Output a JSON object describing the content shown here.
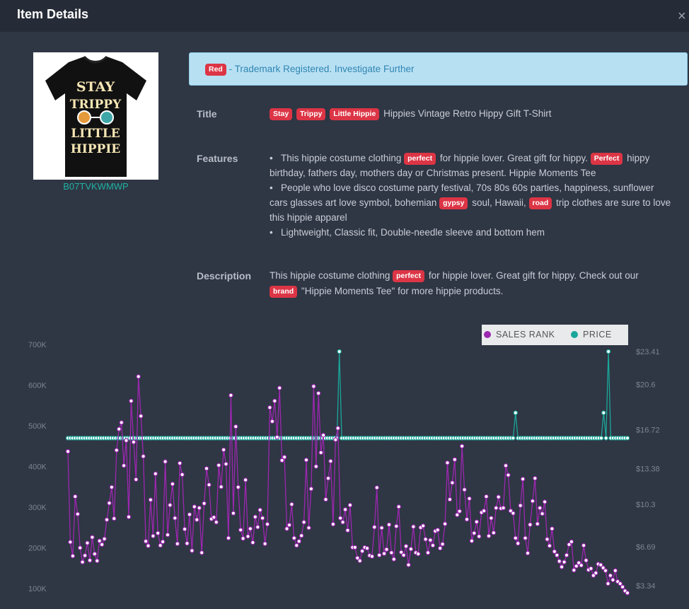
{
  "header": {
    "title": "Item Details",
    "close_glyph": "×"
  },
  "product": {
    "asin": "B07TVKWMWP"
  },
  "shirt": {
    "line1": "STAY",
    "line2": "TRIPPY",
    "line3": "LITTLE",
    "line4": "HIPPIE"
  },
  "alert": {
    "tag": "Red",
    "text": " - Trademark Registered. Investigate Further"
  },
  "title_section": {
    "label": "Title",
    "tags": [
      "Stay",
      "Trippy",
      "Little Hippie"
    ],
    "text": "Hippies Vintage Retro Hippy Gift T-Shirt"
  },
  "features": {
    "label": "Features",
    "b1_pre": "This hippie costume clothing ",
    "b1_tag1": "perfect",
    "b1_mid": " for hippie lover. Great gift for hippy. ",
    "b1_tag2": "Perfect",
    "b1_post1": " hippy",
    "b1_line2": "birthday, fathers day, mothers day or Christmas present. Hippie Moments Tee",
    "b2_line1": "People who love disco costume party festival, 70s 80s 60s parties, happiness, sunflower",
    "b2_pre": "cars glasses art love symbol, bohemian ",
    "b2_tag1": "gypsy",
    "b2_mid": " soul, Hawaii, ",
    "b2_tag2": "road",
    "b2_post": " trip clothes are sure to love",
    "b2_line3": "this hippie apparel",
    "b3": "Lightweight, Classic fit, Double-needle sleeve and bottom hem",
    "bullet": "•"
  },
  "description": {
    "label": "Description",
    "pre": "This hippie costume clothing ",
    "tag1": "perfect",
    "mid": " for hippie lover. Great gift for hippy. Check out our",
    "tag2": "brand",
    "post": " \"Hippie Moments Tee\" for more hippie products."
  },
  "legend": {
    "sales_rank": "SALES RANK",
    "price": "PRICE"
  },
  "colors": {
    "sales_rank": "#9c27b0",
    "price": "#1aa79a",
    "tag": "#dc3545"
  },
  "chart_data": {
    "type": "line",
    "left_axis": {
      "ticks": [
        "700K",
        "600K",
        "500K",
        "400K",
        "300K",
        "200K",
        "100K"
      ],
      "values": [
        700000,
        600000,
        500000,
        400000,
        300000,
        200000,
        100000
      ]
    },
    "right_axis": {
      "ticks": [
        "$23.41",
        "$20.6",
        "$16.72",
        "$13.38",
        "$10.3",
        "$6.69",
        "$3.34"
      ],
      "values": [
        23.41,
        20.6,
        16.72,
        13.38,
        10.3,
        6.69,
        3.34
      ]
    },
    "series": [
      {
        "name": "SALES RANK",
        "axis": "left",
        "values": [
          437000,
          214000,
          180000,
          326000,
          283000,
          200000,
          165000,
          181000,
          212000,
          169000,
          226000,
          185000,
          168000,
          217000,
          208000,
          222000,
          269000,
          310000,
          349000,
          272000,
          440000,
          492000,
          508000,
          402000,
          464000,
          276000,
          561000,
          460000,
          368000,
          621000,
          524000,
          425000,
          216000,
          205000,
          318000,
          229000,
          382000,
          236000,
          206000,
          215000,
          412000,
          232000,
          305000,
          357000,
          273000,
          210000,
          408000,
          380000,
          246000,
          211000,
          282000,
          193000,
          301000,
          269000,
          298000,
          188000,
          309000,
          395000,
          355000,
          271000,
          275000,
          263000,
          403000,
          350000,
          441000,
          406000,
          224000,
          575000,
          285000,
          498000,
          349000,
          244000,
          223000,
          367000,
          228000,
          247000,
          213000,
          276000,
          251000,
          293000,
          273000,
          210000,
          258000,
          545000,
          511000,
          561000,
          472000,
          593000,
          415000,
          423000,
          247000,
          256000,
          307000,
          224000,
          206000,
          216000,
          230000,
          263000,
          416000,
          249000,
          345000,
          597000,
          400000,
          580000,
          434000,
          477000,
          319000,
          371000,
          413000,
          258000,
          466000,
          494000,
          273000,
          263000,
          294000,
          243000,
          305000,
          201000,
          201000,
          175000,
          168000,
          192000,
          201000,
          199000,
          181000,
          179000,
          251000,
          348000,
          182000,
          249000,
          186000,
          196000,
          257000,
          188000,
          172000,
          253000,
          301000,
          189000,
          182000,
          204000,
          158000,
          197000,
          252000,
          188000,
          185000,
          250000,
          254000,
          221000,
          188000,
          219000,
          206000,
          241000,
          244000,
          199000,
          209000,
          259000,
          409000,
          319000,
          360000,
          417000,
          281000,
          290000,
          450000,
          343000,
          270000,
          321000,
          217000,
          236000,
          264000,
          228000,
          287000,
          291000,
          326000,
          229000,
          273000,
          237000,
          298000,
          325000,
          297000,
          298000,
          402000,
          379000,
          291000,
          285000,
          224000,
          211000,
          304000,
          369000,
          224000,
          187000,
          257000,
          315000,
          371000,
          259000,
          298000,
          284000,
          313000,
          221000,
          205000,
          247000,
          191000,
          182000,
          167000,
          153000,
          165000,
          182000,
          208000,
          215000,
          145000,
          155000,
          163000,
          157000,
          206000,
          169000,
          146000,
          149000,
          132000,
          138000,
          160000,
          158000,
          151000,
          144000,
          112000,
          132000,
          121000,
          144000,
          117000,
          112000,
          104000,
          94000,
          89000
        ]
      },
      {
        "name": "PRICE",
        "axis": "right",
        "values": [
          15.99,
          15.99,
          15.99,
          15.99,
          15.99,
          15.99,
          15.99,
          15.99,
          15.99,
          15.99,
          15.99,
          15.99,
          15.99,
          15.99,
          15.99,
          15.99,
          15.99,
          15.99,
          15.99,
          15.99,
          15.99,
          15.99,
          15.99,
          15.99,
          15.99,
          15.99,
          15.99,
          15.99,
          15.99,
          15.99,
          15.99,
          15.99,
          15.99,
          15.99,
          15.99,
          15.99,
          15.99,
          15.99,
          15.99,
          15.99,
          15.99,
          15.99,
          15.99,
          15.99,
          15.99,
          15.99,
          15.99,
          15.99,
          15.99,
          15.99,
          15.99,
          15.99,
          15.99,
          15.99,
          15.99,
          15.99,
          15.99,
          15.99,
          15.99,
          15.99,
          15.99,
          15.99,
          15.99,
          15.99,
          15.99,
          15.99,
          15.99,
          15.99,
          15.99,
          15.99,
          15.99,
          15.99,
          15.99,
          15.99,
          15.99,
          15.99,
          15.99,
          15.99,
          15.99,
          15.99,
          15.99,
          15.99,
          15.99,
          15.99,
          15.99,
          15.99,
          15.99,
          15.99,
          15.99,
          15.99,
          15.99,
          15.99,
          15.99,
          15.99,
          15.99,
          15.99,
          15.99,
          15.99,
          15.99,
          15.99,
          15.99,
          15.99,
          15.99,
          15.99,
          15.99,
          15.99,
          15.99,
          15.99,
          15.99,
          15.99,
          15.99,
          15.99,
          15.99,
          15.99,
          23.41,
          15.99,
          15.99,
          15.99,
          15.99,
          15.99,
          15.99,
          15.99,
          15.99,
          15.99,
          15.99,
          15.99,
          15.99,
          15.99,
          15.99,
          15.99,
          15.99,
          15.99,
          15.99,
          15.99,
          15.99,
          15.99,
          15.99,
          15.99,
          15.99,
          15.99,
          15.99,
          15.99,
          15.99,
          15.99,
          15.99,
          15.99,
          15.99,
          15.99,
          15.99,
          15.99,
          15.99,
          15.99,
          15.99,
          15.99,
          15.99,
          15.99,
          15.99,
          15.99,
          15.99,
          15.99,
          15.99,
          15.99,
          15.99,
          15.99,
          15.99,
          15.99,
          15.99,
          15.99,
          15.99,
          15.99,
          15.99,
          15.99,
          15.99,
          15.99,
          15.99,
          15.99,
          15.99,
          15.99,
          15.99,
          15.99,
          15.99,
          15.99,
          15.99,
          15.99,
          15.99,
          15.99,
          15.99,
          15.99,
          18.16,
          15.99,
          15.99,
          15.99,
          15.99,
          15.99,
          15.99,
          15.99,
          15.99,
          15.99,
          15.99,
          15.99,
          15.99,
          15.99,
          15.99,
          15.99,
          15.99,
          15.99,
          15.99,
          15.99,
          15.99,
          15.99,
          15.99,
          15.99,
          15.99,
          15.99,
          15.99,
          15.99,
          15.99,
          15.99,
          15.99,
          15.99,
          15.99,
          15.99,
          15.99,
          15.99,
          15.99,
          18.16,
          15.99,
          23.41,
          15.99,
          15.99,
          15.99,
          15.99,
          15.99,
          15.99,
          15.99,
          15.99
        ]
      }
    ],
    "legend_placement": "top-right",
    "grid": false
  }
}
